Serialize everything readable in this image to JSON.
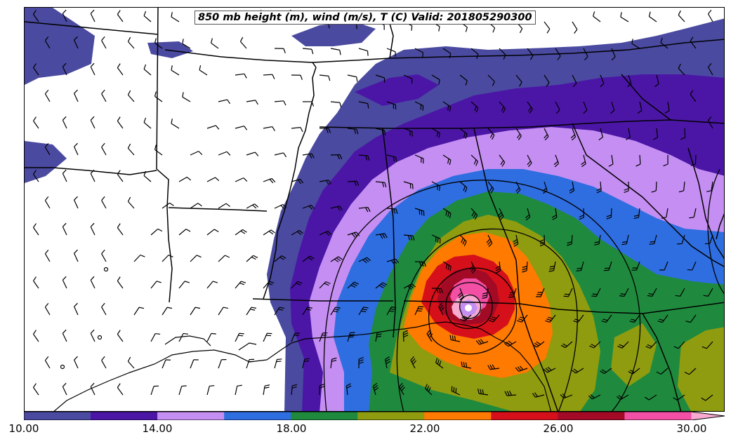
{
  "title": "850 mb height (m), wind (m/s), T (C) Valid: 201805290300",
  "colors": {
    "levels": [
      "#4a4aa0",
      "#4b16a6",
      "#c58ef2",
      "#2f6ee0",
      "#1f8a3e",
      "#8f9c10",
      "#ff7a00",
      "#d6101a",
      "#a20a26",
      "#f24fa5",
      "#f8a9cf"
    ],
    "state_lines": "#000000",
    "barbs": "#000000"
  },
  "colorbar": {
    "ticks": [
      "10.00",
      "14.00",
      "18.00",
      "22.00",
      "26.00",
      "30.00"
    ]
  }
}
